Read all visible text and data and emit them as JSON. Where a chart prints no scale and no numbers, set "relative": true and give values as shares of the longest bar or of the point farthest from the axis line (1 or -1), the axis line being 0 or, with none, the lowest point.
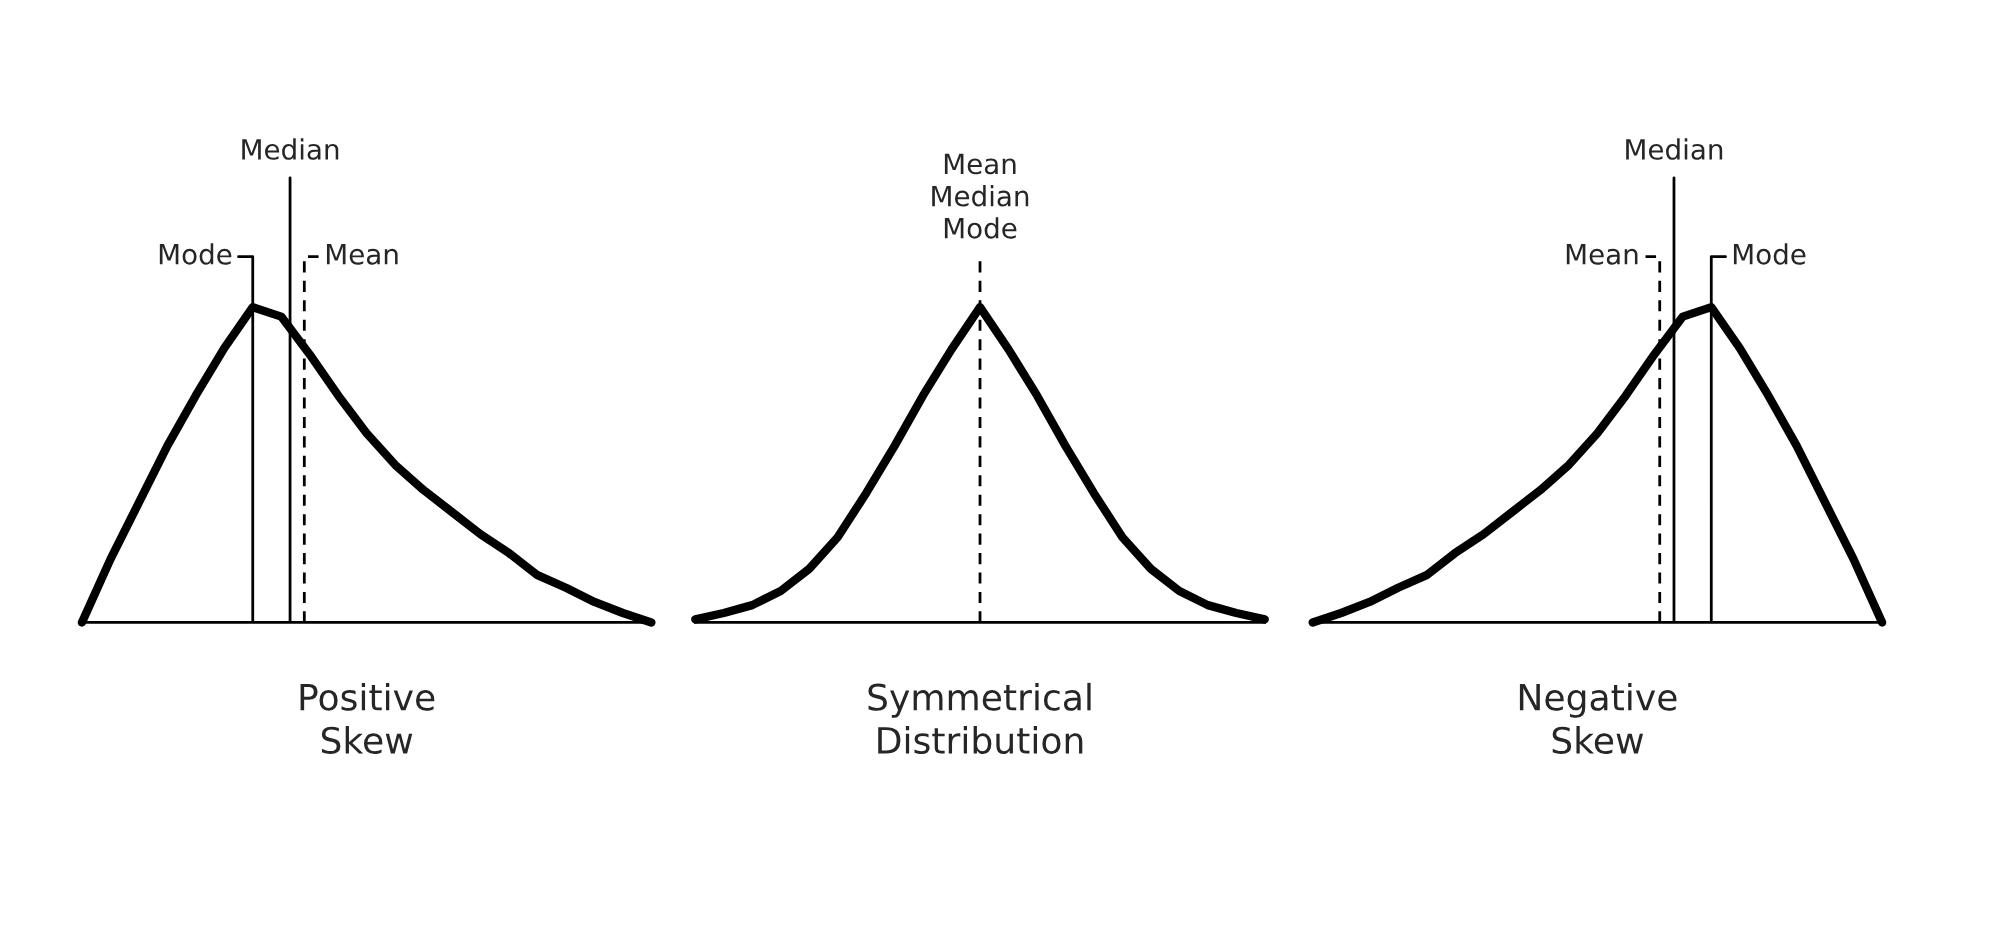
{
  "chart_data": [
    {
      "type": "line",
      "relative": true,
      "xlabel": "Positive\nSkew",
      "categories": [
        null,
        null,
        null,
        null,
        null,
        null,
        null,
        null,
        null,
        null,
        null,
        null,
        null,
        null,
        null,
        null,
        null,
        null,
        null,
        null,
        null
      ],
      "series": [
        {
          "color": "#000000",
          "values": [
            0,
            0.2,
            0.38,
            0.56,
            0.72,
            0.87,
            1,
            0.97,
            0.85,
            0.72,
            0.6,
            0.5,
            0.42,
            0.35,
            0.28,
            0.22,
            0.15,
            0.11,
            0.065,
            0.03,
            0
          ]
        }
      ],
      "annotations": [
        "Mode",
        "Median",
        "Mean"
      ]
    },
    {
      "type": "line",
      "relative": true,
      "xlabel": "Symmetrical\nDistribution",
      "categories": [
        null,
        null,
        null,
        null,
        null,
        null,
        null,
        null,
        null,
        null,
        null,
        null,
        null,
        null,
        null,
        null,
        null,
        null,
        null,
        null,
        null
      ],
      "series": [
        {
          "color": "#000000",
          "values": [
            0.01,
            0.03,
            0.055,
            0.1,
            0.17,
            0.27,
            0.41,
            0.56,
            0.72,
            0.866,
            1,
            0.866,
            0.72,
            0.56,
            0.41,
            0.27,
            0.17,
            0.1,
            0.055,
            0.03,
            0.01
          ]
        }
      ],
      "annotations": [
        "Mean\nMedian\nMode"
      ]
    },
    {
      "type": "line",
      "relative": true,
      "xlabel": "Negative\nSkew",
      "categories": [
        null,
        null,
        null,
        null,
        null,
        null,
        null,
        null,
        null,
        null,
        null,
        null,
        null,
        null,
        null,
        null,
        null,
        null,
        null,
        null,
        null
      ],
      "series": [
        {
          "color": "#000000",
          "values": [
            0,
            0.03,
            0.065,
            0.11,
            0.15,
            0.22,
            0.28,
            0.35,
            0.42,
            0.5,
            0.6,
            0.72,
            0.85,
            0.97,
            1,
            0.87,
            0.72,
            0.56,
            0.38,
            0.2,
            0
          ]
        }
      ],
      "annotations": [
        "Mean",
        "Median",
        "Mode"
      ]
    }
  ]
}
